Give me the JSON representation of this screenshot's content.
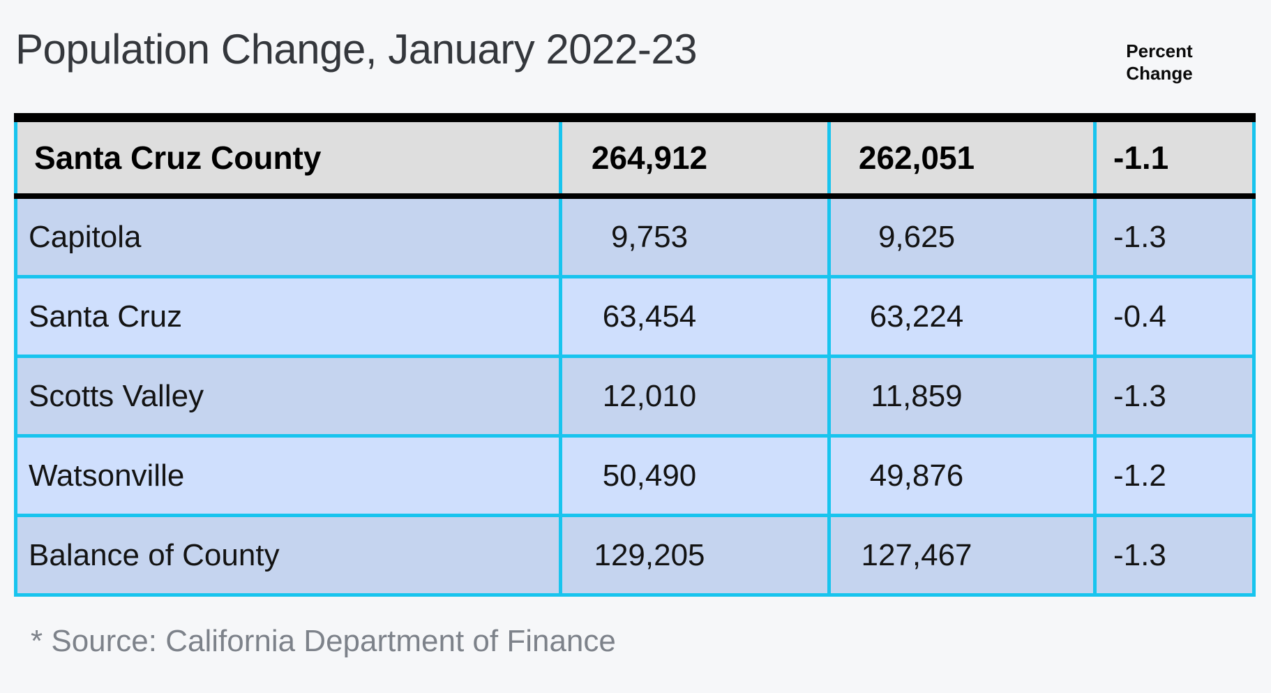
{
  "title": "Population Change, January 2022-23",
  "percent_change_header": {
    "line1": "Percent",
    "line2": "Change"
  },
  "footer_note": "* Source: California Department of Finance",
  "colors": {
    "page_background": "#f6f7f9",
    "header_row_background": "#dedede",
    "row_dark_blue": "#c5d4ef",
    "row_light_blue": "#cfdffd",
    "grid_border_cyan": "#18c4ee",
    "heavy_border_black": "#000000",
    "title_text": "#34373c",
    "footer_text": "#7d828a"
  },
  "chart_data": {
    "type": "table",
    "title": "Population Change, January 2022-23",
    "visible_column_headers": [
      "",
      "",
      "",
      "Percent Change"
    ],
    "header_row": {
      "name": "Santa Cruz County",
      "value_2022": "264,912",
      "value_2023": "262,051",
      "pct": "-1.1"
    },
    "rows": [
      {
        "name": "Capitola",
        "value_2022": "9,753",
        "value_2023": "9,625",
        "pct": "-1.3"
      },
      {
        "name": "Santa Cruz",
        "value_2022": "63,454",
        "value_2023": "63,224",
        "pct": "-0.4"
      },
      {
        "name": "Scotts Valley",
        "value_2022": "12,010",
        "value_2023": "11,859",
        "pct": "-1.3"
      },
      {
        "name": "Watsonville",
        "value_2022": "50,490",
        "value_2023": "49,876",
        "pct": "-1.2"
      },
      {
        "name": "Balance of County",
        "value_2022": "129,205",
        "value_2023": "127,467",
        "pct": "-1.3"
      }
    ],
    "source_note": "* Source: California Department of Finance"
  }
}
